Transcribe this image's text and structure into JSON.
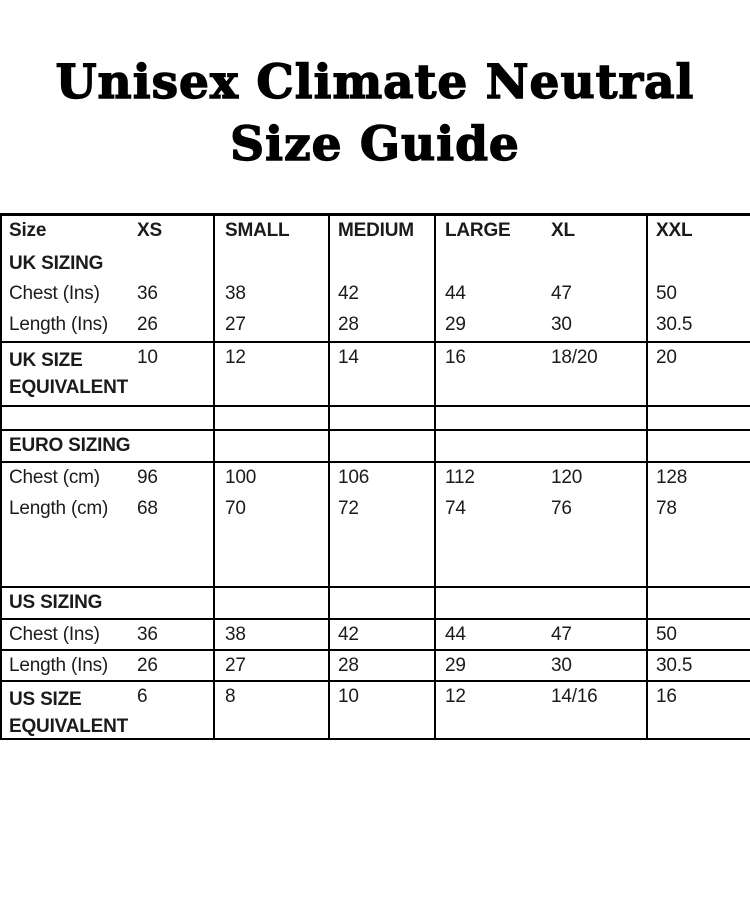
{
  "title": {
    "line1": "Unisex Climate Neutral",
    "line2": "Size Guide"
  },
  "colors": {
    "background": "#ffffff",
    "text": "#1b1b1b",
    "border": "#000000",
    "title": "#000000"
  },
  "table": {
    "columns": [
      "Size",
      "XS",
      "SMALL",
      "MEDIUM",
      "LARGE",
      "XL",
      "XXL"
    ],
    "rows": {
      "header": {
        "label": "Size",
        "v1": "XS",
        "v2": "SMALL",
        "v3": "MEDIUM",
        "v4": "LARGE",
        "v5": "XL",
        "v6": "XXL"
      },
      "uk_sizing": {
        "label": "UK SIZING"
      },
      "uk_chest": {
        "label": "Chest (Ins)",
        "v1": "36",
        "v2": "38",
        "v3": "42",
        "v4": "44",
        "v5": "47",
        "v6": "50"
      },
      "uk_length": {
        "label": "Length (Ins)",
        "v1": "26",
        "v2": "27",
        "v3": "28",
        "v4": "29",
        "v5": "30",
        "v6": "30.5"
      },
      "uk_equiv": {
        "label_line1": "UK SIZE",
        "label_line2": "EQUIVALENT",
        "v1": "10",
        "v2": "12",
        "v3": "14",
        "v4": "16",
        "v5": "18/20",
        "v6": "20"
      },
      "euro_sizing": {
        "label": "EURO SIZING"
      },
      "euro_chest": {
        "label": "Chest (cm)",
        "v1": "96",
        "v2": "100",
        "v3": "106",
        "v4": "112",
        "v5": "120",
        "v6": "128"
      },
      "euro_length": {
        "label": "Length (cm)",
        "v1": "68",
        "v2": "70",
        "v3": "72",
        "v4": "74",
        "v5": "76",
        "v6": "78"
      },
      "us_sizing": {
        "label": "US SIZING"
      },
      "us_chest": {
        "label": "Chest (Ins)",
        "v1": "36",
        "v2": "38",
        "v3": "42",
        "v4": "44",
        "v5": "47",
        "v6": "50"
      },
      "us_length": {
        "label": "Length (Ins)",
        "v1": "26",
        "v2": "27",
        "v3": "28",
        "v4": "29",
        "v5": "30",
        "v6": "30.5"
      },
      "us_equiv": {
        "label_line1": "US SIZE",
        "label_line2": "EQUIVALENT",
        "v1": "6",
        "v2": "8",
        "v3": "10",
        "v4": "12",
        "v5": "14/16",
        "v6": "16"
      }
    }
  }
}
